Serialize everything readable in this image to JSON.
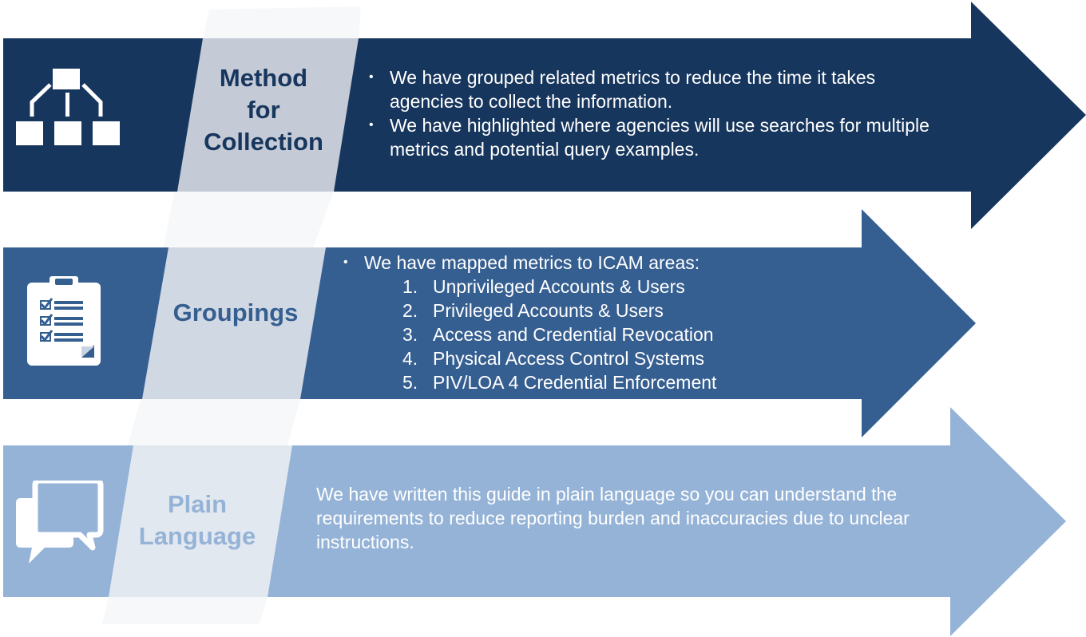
{
  "colors": {
    "row1_arrow": "#17365d",
    "row2_arrow": "#365f91",
    "row3_arrow": "#95b3d7",
    "row1_band": "#c4cad6",
    "row2_band": "#d0d8e3",
    "row3_band": "#e2e8f0",
    "row1_label": "#17365d",
    "row2_label": "#365f91",
    "row3_label": "#95b3d7",
    "text": "#ffffff"
  },
  "rows": [
    {
      "icon": "hierarchy-icon",
      "label_lines": [
        "Method",
        "for",
        "Collection"
      ],
      "bullets": [
        "We have grouped related metrics to reduce the time it takes agencies to collect the information.",
        "We have highlighted where agencies will use searches for multiple metrics and potential query examples."
      ]
    },
    {
      "icon": "clipboard-checklist-icon",
      "label_lines": [
        "Groupings"
      ],
      "intro": "We have mapped metrics to ICAM areas:",
      "items": [
        {
          "num": "1.",
          "text": "Unprivileged Accounts & Users"
        },
        {
          "num": "2.",
          "text": "Privileged Accounts & Users"
        },
        {
          "num": "3.",
          "text": "Access and Credential Revocation"
        },
        {
          "num": "4.",
          "text": "Physical Access Control Systems"
        },
        {
          "num": "5.",
          "text": "PIV/LOA 4 Credential Enforcement"
        }
      ]
    },
    {
      "icon": "speech-bubbles-icon",
      "label_lines": [
        "Plain",
        "Language"
      ],
      "text": "We have written this guide in plain language so you can understand the requirements to reduce reporting burden and inaccuracies due to unclear instructions."
    }
  ]
}
